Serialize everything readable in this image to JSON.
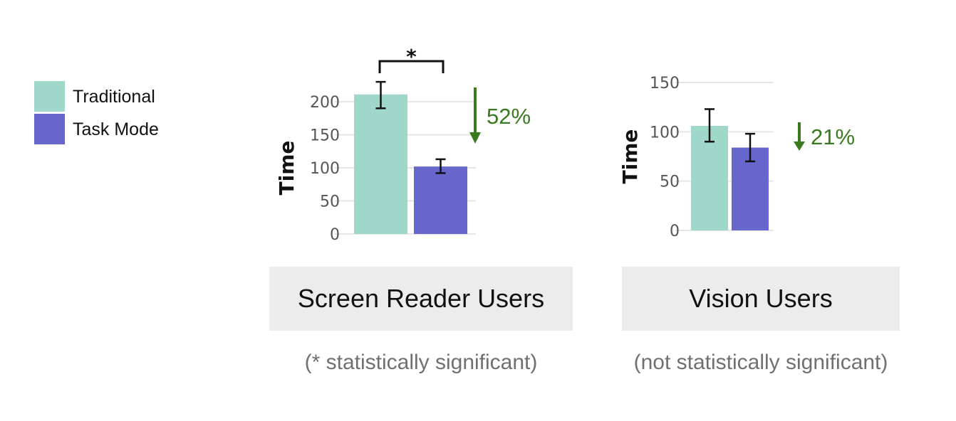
{
  "legend": [
    {
      "label": "Traditional",
      "color": "#9fd8cb"
    },
    {
      "label": "Task Mode",
      "color": "#6766cc"
    }
  ],
  "chart_data": [
    {
      "type": "bar",
      "group_label": "Screen Reader Users",
      "note": "(* statistically significant)",
      "ylabel": "Time",
      "ylim": [
        0,
        200
      ],
      "yticks": [
        0,
        50,
        100,
        150,
        200
      ],
      "categories": [
        "Traditional",
        "Task Mode"
      ],
      "values": [
        211,
        102
      ],
      "error_low": [
        190,
        92
      ],
      "error_high": [
        230,
        113
      ],
      "significance_marker": "*",
      "change_label": "52%",
      "change_direction": "down",
      "grid": true
    },
    {
      "type": "bar",
      "group_label": "Vision Users",
      "note": "(not statistically significant)",
      "ylabel": "Time",
      "ylim": [
        0,
        150
      ],
      "yticks": [
        0,
        50,
        100,
        150
      ],
      "categories": [
        "Traditional",
        "Task Mode"
      ],
      "values": [
        106,
        84
      ],
      "error_low": [
        90,
        70
      ],
      "error_high": [
        123,
        98
      ],
      "change_label": "21%",
      "change_direction": "down",
      "grid": true
    }
  ],
  "colors": {
    "traditional": "#9fd8cb",
    "task_mode": "#6766cc",
    "change_arrow": "#3a7a1f",
    "grid": "#e6e6e6"
  }
}
